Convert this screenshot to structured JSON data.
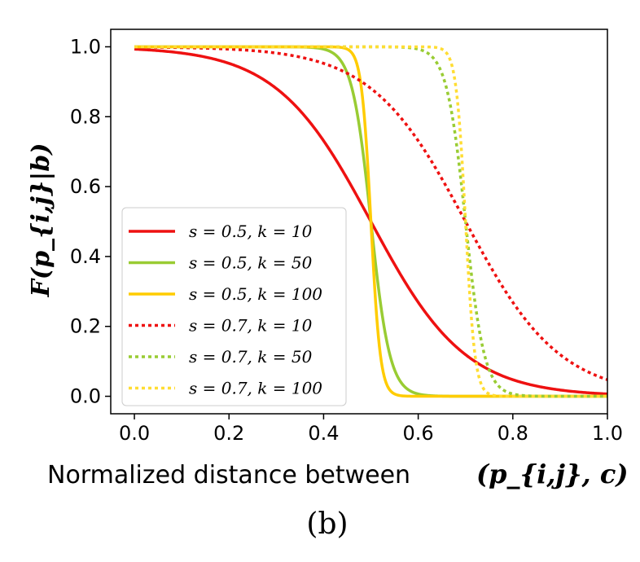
{
  "chart_data": {
    "type": "line",
    "xlabel": "Normalized distance between",
    "xlabel_math": "(p_{i,j}, c)",
    "ylabel_math": "F(p_{i,j}|b)",
    "caption": "(b)",
    "xlim": [
      -0.05,
      1.0
    ],
    "ylim": [
      -0.05,
      1.05
    ],
    "x_ticks": [
      0.0,
      0.2,
      0.4,
      0.6,
      0.8,
      1.0
    ],
    "x_tick_labels": [
      "0.0",
      "0.2",
      "0.4",
      "0.6",
      "0.8",
      "1.0"
    ],
    "y_ticks": [
      0.0,
      0.2,
      0.4,
      0.6,
      0.8,
      1.0
    ],
    "y_tick_labels": [
      "0.0",
      "0.2",
      "0.4",
      "0.6",
      "0.8",
      "1.0"
    ],
    "grid": false,
    "legend_position": "center-left",
    "series": [
      {
        "name": "s = 0.5, k = 10",
        "s": 0.5,
        "k": 10,
        "color": "#ee1111",
        "style": "solid"
      },
      {
        "name": "s = 0.5, k = 50",
        "s": 0.5,
        "k": 50,
        "color": "#99cc33",
        "style": "solid"
      },
      {
        "name": "s = 0.5, k = 100",
        "s": 0.5,
        "k": 100,
        "color": "#ffcc00",
        "style": "solid"
      },
      {
        "name": "s = 0.7, k = 10",
        "s": 0.7,
        "k": 10,
        "color": "#ee1111",
        "style": "dotted"
      },
      {
        "name": "s = 0.7, k = 50",
        "s": 0.7,
        "k": 50,
        "color": "#99cc33",
        "style": "dotted"
      },
      {
        "name": "s = 0.7, k = 100",
        "s": 0.7,
        "k": 100,
        "color": "#ffdd33",
        "style": "dotted"
      }
    ]
  }
}
